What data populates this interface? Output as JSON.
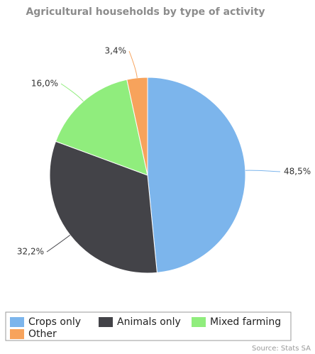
{
  "chart_data": {
    "type": "pie",
    "title": "Agricultural households by type of activity",
    "categories": [
      "Crops only",
      "Animals only",
      "Mixed farming",
      "Other"
    ],
    "values": [
      48.5,
      32.2,
      16.0,
      3.4
    ],
    "value_labels": [
      "48,5%",
      "32,2%",
      "16,0%",
      "3,4%"
    ],
    "colors": [
      "#7cb5ec",
      "#434348",
      "#90ed7d",
      "#f7a35c"
    ],
    "legend": "bottom",
    "source": "Source: Stats SA"
  }
}
